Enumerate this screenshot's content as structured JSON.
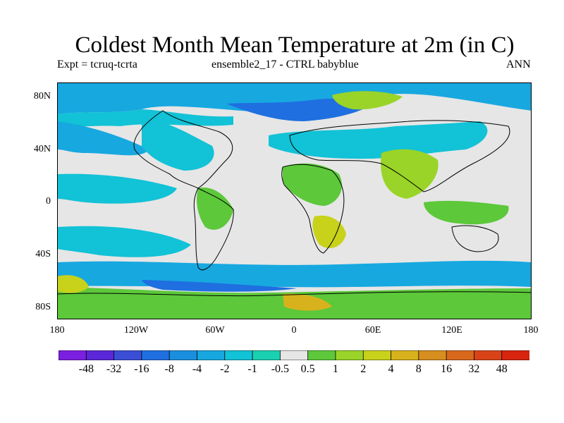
{
  "title": "Coldest Month Mean Temperature at 2m (in C)",
  "subtitle_left": "Expt = tcruq-tcrta",
  "subtitle_center": "ensemble2_17 - CTRL babyblue",
  "subtitle_right": "ANN",
  "y_ticks": [
    "80N",
    "40N",
    "0",
    "40S",
    "80S"
  ],
  "x_ticks": [
    "180",
    "120W",
    "60W",
    "0",
    "60E",
    "120E",
    "180"
  ],
  "colorbar": {
    "labels": [
      "-48",
      "-32",
      "-16",
      "-8",
      "-4",
      "-2",
      "-1",
      "-0.5",
      "0.5",
      "1",
      "2",
      "4",
      "8",
      "16",
      "32",
      "48"
    ],
    "colors": [
      "#7b1fe0",
      "#5b27d8",
      "#3b4fd6",
      "#1f6fe0",
      "#1b8fdf",
      "#17a8e0",
      "#12c2d6",
      "#1ad0b0",
      "#e6e6e6",
      "#5cc83a",
      "#9ad428",
      "#c8d21a",
      "#d8b21c",
      "#d88e1e",
      "#d8681c",
      "#d84418",
      "#d8250f"
    ]
  },
  "palette": {
    "ocean_neutral": "#e6e6e6",
    "cool_dark": "#1f6fe0",
    "cool_mid": "#17a8e0",
    "cool_light": "#12c2d6",
    "cool_teal": "#1ad0b0",
    "warm_light": "#5cc83a",
    "warm_mid": "#9ad428",
    "warm_strong": "#c8d21a",
    "warm_orange": "#d8b21c",
    "coast": "#000000"
  }
}
